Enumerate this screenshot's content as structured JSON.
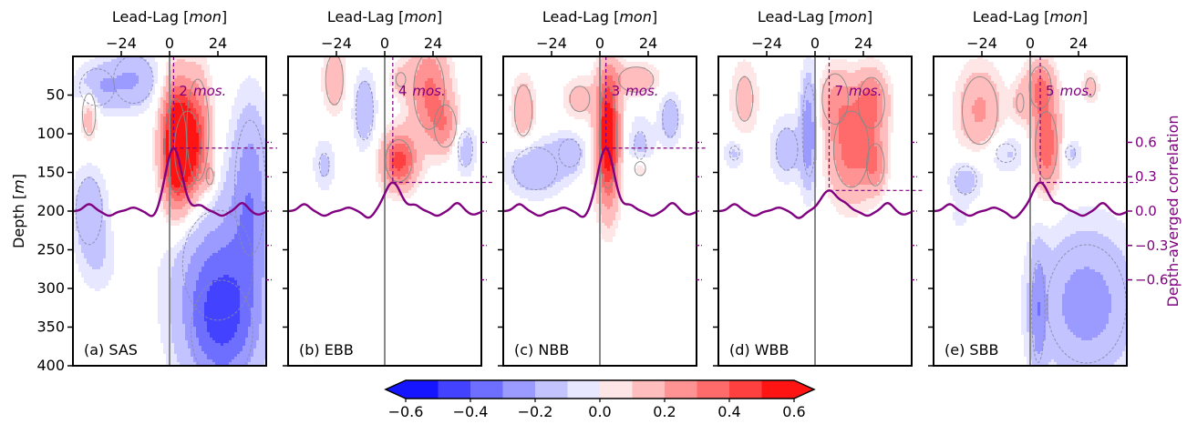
{
  "chart_data": {
    "type": "heatmap",
    "figure": {
      "top_axis_label": "Lead-Lag",
      "top_axis_unit": "mon",
      "left_axis_label": "Depth",
      "left_axis_unit": "m",
      "right_axis_label": "Depth-averged correlation",
      "x_ticks": [
        -24,
        0,
        24
      ],
      "x_range": [
        -48,
        48
      ],
      "y_ticks": [
        50,
        100,
        150,
        200,
        250,
        300,
        350,
        400
      ],
      "y_range": [
        0,
        400
      ],
      "right_ticks": [
        0.6,
        0.3,
        0.0,
        -0.3,
        -0.6
      ],
      "right_tick_labels": [
        "0.6",
        "0.3",
        "0.0",
        "−0.3",
        "−0.6"
      ],
      "right_range": [
        -1.35,
        1.35
      ],
      "colorbar": {
        "ticks": [
          -0.6,
          -0.4,
          -0.2,
          0.0,
          0.2,
          0.4,
          0.6
        ],
        "tick_labels": [
          "−0.6",
          "−0.4",
          "−0.2",
          "0.0",
          "0.2",
          "0.4",
          "0.6"
        ],
        "levels": [
          -0.6,
          -0.5,
          -0.4,
          -0.3,
          -0.2,
          -0.1,
          0.0,
          0.1,
          0.2,
          0.3,
          0.4,
          0.5,
          0.6
        ],
        "colors": [
          "#1515ff",
          "#4343ff",
          "#6f6fff",
          "#9b9bff",
          "#c3c3ff",
          "#e7e7ff",
          "#ffe6e6",
          "#ffbdbd",
          "#ff9393",
          "#ff6b6b",
          "#ff4040",
          "#ff1414"
        ]
      },
      "lag_line_color": "#800080",
      "zero_line_color": "#888888"
    },
    "panels": [
      {
        "label": "(a) SAS",
        "lag_text": "2",
        "lag_unit": "mos.",
        "lag_months": 2,
        "peak_correlation": 0.55,
        "blobs": [
          {
            "lag": 3,
            "depth": 115,
            "w": 5,
            "h": 55,
            "v": 0.65
          },
          {
            "lag": 9,
            "depth": 120,
            "w": 6,
            "h": 45,
            "v": 0.35
          },
          {
            "lag": 14,
            "depth": 95,
            "w": 5,
            "h": 60,
            "v": 0.22
          },
          {
            "lag": -40,
            "depth": 75,
            "w": 3,
            "h": 25,
            "v": 0.18
          },
          {
            "lag": 20,
            "depth": 155,
            "w": 2,
            "h": 12,
            "v": 0.15
          },
          {
            "lag": -36,
            "depth": 40,
            "w": 8,
            "h": 22,
            "v": -0.18
          },
          {
            "lag": -18,
            "depth": 30,
            "w": 9,
            "h": 28,
            "v": -0.2
          },
          {
            "lag": -40,
            "depth": 200,
            "w": 6,
            "h": 40,
            "v": -0.18
          },
          {
            "lag": -35,
            "depth": 265,
            "w": 7,
            "h": 35,
            "v": -0.08
          },
          {
            "lag": 26,
            "depth": 355,
            "w": 14,
            "h": 60,
            "v": -0.35
          },
          {
            "lag": 24,
            "depth": 270,
            "w": 16,
            "h": 65,
            "v": -0.22
          },
          {
            "lag": 40,
            "depth": 170,
            "w": 7,
            "h": 80,
            "v": -0.25
          }
        ]
      },
      {
        "label": "(b) EBB",
        "lag_text": "4",
        "lag_unit": "mos.",
        "lag_months": 4,
        "peak_correlation": 0.25,
        "blobs": [
          {
            "lag": 7,
            "depth": 135,
            "w": 6,
            "h": 25,
            "v": 0.45
          },
          {
            "lag": 22,
            "depth": 45,
            "w": 7,
            "h": 45,
            "v": 0.32
          },
          {
            "lag": 30,
            "depth": 90,
            "w": 5,
            "h": 25,
            "v": 0.2
          },
          {
            "lag": -25,
            "depth": 30,
            "w": 4,
            "h": 30,
            "v": 0.18
          },
          {
            "lag": 8,
            "depth": 30,
            "w": 4,
            "h": 15,
            "v": 0.12
          },
          {
            "lag": -10,
            "depth": 70,
            "w": 4,
            "h": 35,
            "v": -0.18
          },
          {
            "lag": -30,
            "depth": 140,
            "w": 4,
            "h": 25,
            "v": -0.12
          },
          {
            "lag": 40,
            "depth": 120,
            "w": 4,
            "h": 25,
            "v": -0.15
          }
        ]
      },
      {
        "label": "(c) NBB",
        "lag_text": "3",
        "lag_unit": "mos.",
        "lag_months": 3,
        "peak_correlation": 0.55,
        "blobs": [
          {
            "lag": 4,
            "depth": 105,
            "w": 4,
            "h": 60,
            "v": 0.65
          },
          {
            "lag": 18,
            "depth": 30,
            "w": 8,
            "h": 15,
            "v": 0.18
          },
          {
            "lag": -38,
            "depth": 70,
            "w": 4,
            "h": 30,
            "v": 0.2
          },
          {
            "lag": -10,
            "depth": 55,
            "w": 6,
            "h": 20,
            "v": 0.14
          },
          {
            "lag": 20,
            "depth": 145,
            "w": 3,
            "h": 10,
            "v": 0.15
          },
          {
            "lag": -32,
            "depth": 145,
            "w": 10,
            "h": 25,
            "v": -0.2
          },
          {
            "lag": -15,
            "depth": 125,
            "w": 6,
            "h": 20,
            "v": -0.15
          },
          {
            "lag": 20,
            "depth": 115,
            "w": 5,
            "h": 30,
            "v": -0.12
          },
          {
            "lag": 35,
            "depth": 80,
            "w": 4,
            "h": 25,
            "v": -0.16
          }
        ]
      },
      {
        "label": "(d) WBB",
        "lag_text": "7",
        "lag_unit": "mos.",
        "lag_months": 7,
        "peak_correlation": 0.18,
        "blobs": [
          {
            "lag": 18,
            "depth": 120,
            "w": 8,
            "h": 45,
            "v": 0.35
          },
          {
            "lag": 28,
            "depth": 60,
            "w": 6,
            "h": 30,
            "v": 0.3
          },
          {
            "lag": 10,
            "depth": 55,
            "w": 6,
            "h": 30,
            "v": 0.18
          },
          {
            "lag": 30,
            "depth": 140,
            "w": 4,
            "h": 25,
            "v": 0.22
          },
          {
            "lag": -35,
            "depth": 55,
            "w": 5,
            "h": 35,
            "v": 0.14
          },
          {
            "lag": -3,
            "depth": 95,
            "w": 3,
            "h": 55,
            "v": -0.28
          },
          {
            "lag": -14,
            "depth": 120,
            "w": 6,
            "h": 30,
            "v": -0.15
          },
          {
            "lag": -40,
            "depth": 125,
            "w": 4,
            "h": 15,
            "v": -0.12
          }
        ]
      },
      {
        "label": "(e) SBB",
        "lag_text": "5",
        "lag_unit": "mos.",
        "lag_months": 5,
        "peak_correlation": 0.25,
        "blobs": [
          {
            "lag": 8,
            "depth": 115,
            "w": 5,
            "h": 40,
            "v": 0.4
          },
          {
            "lag": 5,
            "depth": 40,
            "w": 5,
            "h": 25,
            "v": 0.3
          },
          {
            "lag": -25,
            "depth": 70,
            "w": 8,
            "h": 40,
            "v": 0.22
          },
          {
            "lag": 30,
            "depth": 40,
            "w": 3,
            "h": 15,
            "v": 0.14
          },
          {
            "lag": -5,
            "depth": 60,
            "w": 3,
            "h": 20,
            "v": 0.12
          },
          {
            "lag": -32,
            "depth": 160,
            "w": 6,
            "h": 20,
            "v": -0.15
          },
          {
            "lag": -12,
            "depth": 125,
            "w": 8,
            "h": 20,
            "v": -0.12
          },
          {
            "lag": 20,
            "depth": 125,
            "w": 4,
            "h": 15,
            "v": -0.12
          },
          {
            "lag": 28,
            "depth": 320,
            "w": 18,
            "h": 70,
            "v": -0.25
          },
          {
            "lag": 4,
            "depth": 330,
            "w": 3,
            "h": 60,
            "v": -0.2
          },
          {
            "lag": -35,
            "depth": 210,
            "w": 4,
            "h": 15,
            "v": -0.06
          }
        ]
      }
    ]
  }
}
